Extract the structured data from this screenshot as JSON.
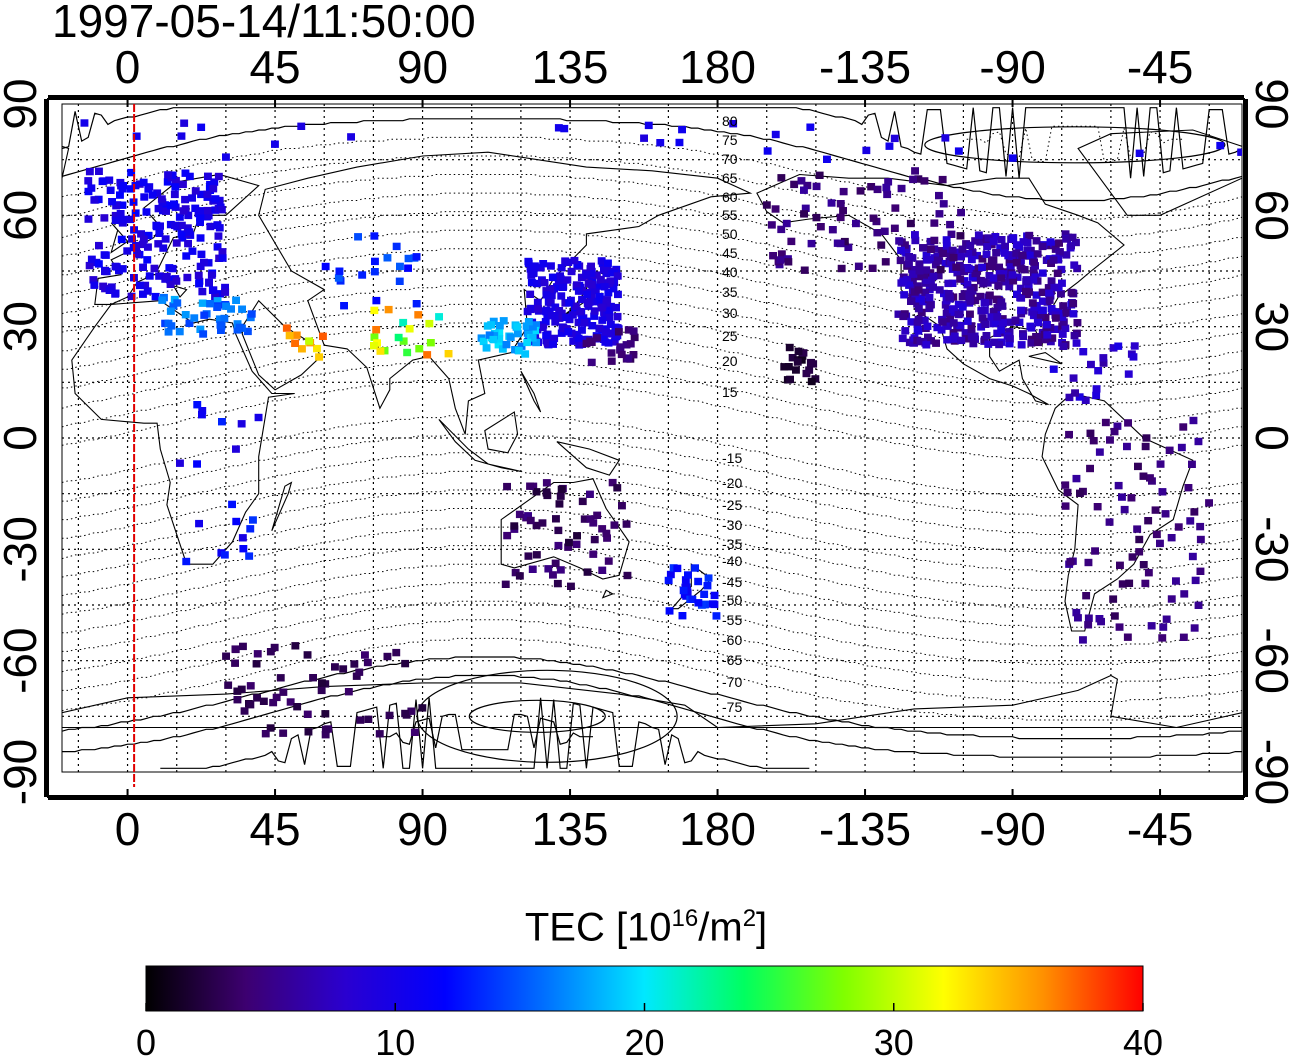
{
  "timestamp": "1997-05-14/11:50:00",
  "map": {
    "projection": "equirectangular",
    "lon_center": 160,
    "lon_range": [
      -20,
      340
    ],
    "lat_range": [
      -90,
      90
    ],
    "top_lon_ticks": [
      "0",
      "45",
      "90",
      "135",
      "180",
      "-135",
      "-90",
      "-45"
    ],
    "bottom_lon_ticks": [
      "0",
      "45",
      "90",
      "135",
      "180",
      "-135",
      "-90",
      "-45"
    ],
    "left_lat_ticks": [
      "90",
      "60",
      "30",
      "0",
      "-30",
      "-60",
      "-90"
    ],
    "right_lat_ticks": [
      "90",
      "60",
      "30",
      "0",
      "-30",
      "-60",
      "-90"
    ],
    "terminator_lon": 2,
    "terminator_color": "#e00000",
    "contour_labels": [
      "80",
      "75",
      "70",
      "65",
      "60",
      "55",
      "50",
      "45",
      "40",
      "35",
      "30",
      "25",
      "20",
      "15",
      "-15",
      "-20",
      "-25",
      "-30",
      "-35",
      "-40",
      "-45",
      "-50",
      "-55",
      "-60",
      "-65",
      "-70",
      "-75"
    ]
  },
  "colorbar": {
    "title_main": "TEC  [10",
    "title_exp": "16",
    "title_unit": "/m",
    "title_unit_exp": "2",
    "title_end": "]",
    "min": 0,
    "max": 40,
    "tick_labels": [
      "0",
      "10",
      "20",
      "30",
      "40"
    ],
    "colors": [
      "#000000",
      "#3d0070",
      "#2a00d0",
      "#0000ff",
      "#0070ff",
      "#00e8ff",
      "#00ff60",
      "#80ff00",
      "#ffff00",
      "#ff9000",
      "#ff0000"
    ]
  },
  "chart_data": {
    "type": "heatmap",
    "value_label": "TEC [10^16/m^2]",
    "vmin": 0,
    "vmax": 40,
    "clusters": [
      {
        "region": "Europe",
        "lon": [
          -12,
          30
        ],
        "lat": [
          38,
          72
        ],
        "tec": [
          8,
          12
        ],
        "n": 200
      },
      {
        "region": "Mediterranean",
        "lon": [
          10,
          38
        ],
        "lat": [
          28,
          38
        ],
        "tec": [
          14,
          18
        ],
        "n": 40
      },
      {
        "region": "Middle East",
        "lon": [
          45,
          60
        ],
        "lat": [
          20,
          30
        ],
        "tec": [
          30,
          38
        ],
        "n": 10
      },
      {
        "region": "India",
        "lon": [
          75,
          100
        ],
        "lat": [
          22,
          35
        ],
        "tec": [
          20,
          38
        ],
        "n": 20
      },
      {
        "region": "Central Asia",
        "lon": [
          60,
          90
        ],
        "lat": [
          35,
          55
        ],
        "tec": [
          12,
          16
        ],
        "n": 20
      },
      {
        "region": "Japan/China",
        "lon": [
          122,
          150
        ],
        "lat": [
          25,
          48
        ],
        "tec": [
          8,
          11
        ],
        "n": 220
      },
      {
        "region": "East China",
        "lon": [
          108,
          125
        ],
        "lat": [
          22,
          32
        ],
        "tec": [
          16,
          20
        ],
        "n": 40
      },
      {
        "region": "Pacific",
        "lon": [
          140,
          155
        ],
        "lat": [
          20,
          30
        ],
        "tec": [
          3,
          5
        ],
        "n": 20
      },
      {
        "region": "North America",
        "lon": [
          235,
          290
        ],
        "lat": [
          25,
          55
        ],
        "tec": [
          4,
          9
        ],
        "n": 450
      },
      {
        "region": "Canada/Alaska",
        "lon": [
          195,
          255
        ],
        "lat": [
          45,
          72
        ],
        "tec": [
          3,
          6
        ],
        "n": 80
      },
      {
        "region": "Hawaii",
        "lon": [
          200,
          210
        ],
        "lat": [
          15,
          25
        ],
        "tec": [
          1,
          3
        ],
        "n": 20
      },
      {
        "region": "Caribbean",
        "lon": [
          280,
          310
        ],
        "lat": [
          10,
          25
        ],
        "tec": [
          6,
          10
        ],
        "n": 20
      },
      {
        "region": "South America",
        "lon": [
          285,
          330
        ],
        "lat": [
          -55,
          5
        ],
        "tec": [
          3,
          6
        ],
        "n": 90
      },
      {
        "region": "Australia",
        "lon": [
          115,
          155
        ],
        "lat": [
          -40,
          -12
        ],
        "tec": [
          2,
          5
        ],
        "n": 60
      },
      {
        "region": "New Zealand",
        "lon": [
          165,
          180
        ],
        "lat": [
          -48,
          -35
        ],
        "tec": [
          10,
          14
        ],
        "n": 30
      },
      {
        "region": "Africa",
        "lon": [
          15,
          40
        ],
        "lat": [
          -35,
          10
        ],
        "tec": [
          9,
          14
        ],
        "n": 20
      },
      {
        "region": "Antarctica",
        "lon": [
          30,
          90
        ],
        "lat": [
          -80,
          -55
        ],
        "tec": [
          2,
          4
        ],
        "n": 60
      },
      {
        "region": "Arctic",
        "lon": [
          -15,
          350
        ],
        "lat": [
          75,
          85
        ],
        "tec": [
          9,
          11
        ],
        "n": 30
      }
    ]
  }
}
